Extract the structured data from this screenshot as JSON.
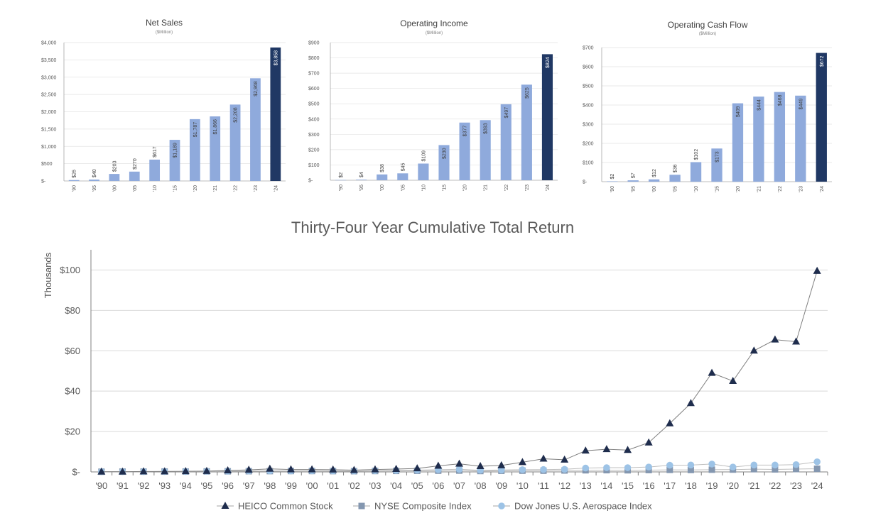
{
  "chart_data": [
    {
      "type": "bar",
      "title": "Net Sales",
      "subtitle": "($Million)",
      "categories": [
        "'90",
        "'95",
        "'00",
        "'05",
        "'10",
        "'15",
        "'20",
        "'21",
        "'22",
        "'23",
        "'24"
      ],
      "values": [
        26,
        40,
        203,
        270,
        617,
        1189,
        1787,
        1866,
        2208,
        2968,
        3858
      ],
      "data_labels": [
        "$26",
        "$40",
        "$203",
        "$270",
        "$617",
        "$1,189",
        "$1,787",
        "$1,866",
        "$2,208",
        "$2,968",
        "$3,858"
      ],
      "ylim": [
        0,
        4000
      ],
      "yticks": [
        0,
        500,
        1000,
        1500,
        2000,
        2500,
        3000,
        3500,
        4000
      ],
      "ytick_labels": [
        "$-",
        "$500",
        "$1,000",
        "$1,500",
        "$2,000",
        "$2,500",
        "$3,000",
        "$3,500",
        "$4,000"
      ],
      "colors": {
        "bar": "#8faadc",
        "highlight": "#203864"
      },
      "highlight_last": true
    },
    {
      "type": "bar",
      "title": "Operating Income",
      "subtitle": "($Million)",
      "categories": [
        "'90",
        "'95",
        "'00",
        "'05",
        "'10",
        "'15",
        "'20",
        "'21",
        "'22",
        "'23",
        "'24"
      ],
      "values": [
        2,
        4,
        38,
        45,
        109,
        230,
        377,
        393,
        497,
        625,
        824
      ],
      "data_labels": [
        "$2",
        "$4",
        "$38",
        "$45",
        "$109",
        "$230",
        "$377",
        "$393",
        "$497",
        "$625",
        "$824"
      ],
      "ylim": [
        0,
        900
      ],
      "yticks": [
        0,
        100,
        200,
        300,
        400,
        500,
        600,
        700,
        800,
        900
      ],
      "ytick_labels": [
        "$-",
        "$100",
        "$200",
        "$300",
        "$400",
        "$500",
        "$600",
        "$700",
        "$800",
        "$900"
      ],
      "colors": {
        "bar": "#8faadc",
        "highlight": "#203864"
      },
      "highlight_last": true
    },
    {
      "type": "bar",
      "title": "Operating Cash Flow",
      "subtitle": "($Million)",
      "categories": [
        "'90",
        "'95",
        "'00",
        "'05",
        "'10",
        "'15",
        "'20",
        "'21",
        "'22",
        "'23",
        "'24"
      ],
      "values": [
        2,
        7,
        12,
        36,
        102,
        173,
        409,
        444,
        468,
        449,
        672
      ],
      "data_labels": [
        "$2",
        "$7",
        "$12",
        "$36",
        "$102",
        "$173",
        "$409",
        "$444",
        "$468",
        "$449",
        "$672"
      ],
      "ylim": [
        0,
        700
      ],
      "yticks": [
        0,
        100,
        200,
        300,
        400,
        500,
        600,
        700
      ],
      "ytick_labels": [
        "$-",
        "$100",
        "$200",
        "$300",
        "$400",
        "$500",
        "$600",
        "$700"
      ],
      "colors": {
        "bar": "#8faadc",
        "highlight": "#203864"
      },
      "highlight_last": true
    },
    {
      "type": "line",
      "title": "Thirty-Four Year Cumulative Total Return",
      "ylabel": "Thousands",
      "xlabel": "",
      "categories": [
        "'90",
        "'91",
        "'92",
        "'93",
        "'94",
        "'95",
        "'96",
        "'97",
        "'98",
        "'99",
        "'00",
        "'01",
        "'02",
        "'03",
        "'04",
        "'05",
        "'06",
        "'07",
        "'08",
        "'09",
        "'10",
        "'11",
        "'12",
        "'13",
        "'14",
        "'15",
        "'16",
        "'17",
        "'18",
        "'19",
        "'20",
        "'21",
        "'22",
        "'23",
        "'24"
      ],
      "ylim": [
        0,
        110
      ],
      "yticks": [
        0,
        20,
        40,
        60,
        80,
        100
      ],
      "ytick_labels": [
        "$-",
        "$20",
        "$40",
        "$60",
        "$80",
        "$100"
      ],
      "grid": true,
      "legend_position": "bottom",
      "series": [
        {
          "name": "HEICO Common Stock",
          "marker": "triangle",
          "color": "#1f2d4d",
          "values": [
            0.1,
            0.1,
            0.2,
            0.2,
            0.3,
            0.4,
            0.7,
            1.0,
            1.5,
            1.2,
            1.2,
            1.1,
            0.9,
            1.2,
            1.4,
            1.7,
            3.0,
            4.0,
            2.8,
            3.2,
            4.8,
            6.5,
            6.0,
            10.5,
            11.2,
            10.8,
            14.5,
            24.0,
            34.0,
            49.0,
            45.0,
            60.0,
            65.5,
            64.5,
            99.5
          ]
        },
        {
          "name": "NYSE Composite Index",
          "marker": "square",
          "color": "#8497b0",
          "values": [
            0.1,
            0.15,
            0.15,
            0.2,
            0.2,
            0.25,
            0.3,
            0.35,
            0.4,
            0.45,
            0.45,
            0.4,
            0.35,
            0.45,
            0.5,
            0.55,
            0.6,
            0.65,
            0.45,
            0.55,
            0.6,
            0.6,
            0.7,
            0.8,
            0.85,
            0.8,
            0.9,
            1.0,
            0.95,
            1.1,
            1.15,
            1.35,
            1.25,
            1.4,
            1.55
          ]
        },
        {
          "name": "Dow Jones U.S. Aerospace Index",
          "marker": "circle",
          "color": "#9dc3e6",
          "values": [
            0.1,
            0.15,
            0.15,
            0.2,
            0.2,
            0.3,
            0.35,
            0.45,
            0.5,
            0.45,
            0.55,
            0.5,
            0.45,
            0.6,
            0.75,
            0.9,
            1.1,
            1.3,
            0.8,
            0.95,
            1.1,
            1.15,
            1.3,
            1.9,
            2.1,
            2.1,
            2.4,
            3.3,
            3.4,
            3.9,
            2.4,
            3.4,
            3.4,
            3.6,
            5.0
          ]
        }
      ]
    }
  ]
}
